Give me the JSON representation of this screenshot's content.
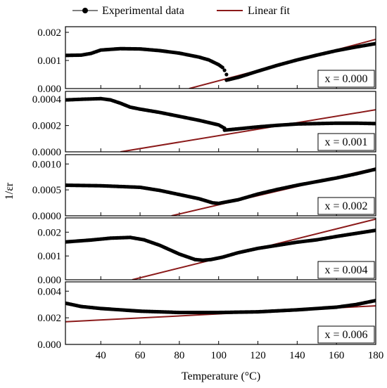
{
  "chart_data": {
    "type": "scatter",
    "layout": "stacked-panels",
    "xlabel": "Temperature (°C)",
    "ylabel": "1/εr",
    "x_ticks": [
      "40",
      "60",
      "80",
      "100",
      "120",
      "140",
      "160",
      "180"
    ],
    "xlim": [
      22,
      180
    ],
    "legend": {
      "placement": "top",
      "experimental_label": "Experimental data",
      "fit_label": "Linear fit"
    },
    "colors": {
      "data": "#000000",
      "fit": "#8b1a1a"
    },
    "panels": [
      {
        "label": "x = 0.000",
        "ylim": [
          0,
          0.0022
        ],
        "yticks": [
          "0.000",
          "0.001",
          "0.002"
        ],
        "ytick_values": [
          0,
          0.001,
          0.002
        ],
        "series": [
          [
            22,
            0.00118
          ],
          [
            30,
            0.00119
          ],
          [
            35,
            0.00125
          ],
          [
            40,
            0.00137
          ],
          [
            50,
            0.00142
          ],
          [
            60,
            0.00141
          ],
          [
            70,
            0.00135
          ],
          [
            80,
            0.00126
          ],
          [
            90,
            0.00112
          ],
          [
            95,
            0.00102
          ],
          [
            100,
            0.00085
          ],
          [
            102,
            0.00075
          ],
          [
            103,
            0.00065
          ],
          [
            104,
            0.0005
          ]
        ],
        "series2": [
          [
            104,
            0.0003
          ],
          [
            110,
            0.0004
          ],
          [
            120,
            0.00062
          ],
          [
            130,
            0.00083
          ],
          [
            140,
            0.00102
          ],
          [
            150,
            0.00119
          ],
          [
            160,
            0.00135
          ],
          [
            170,
            0.00148
          ],
          [
            180,
            0.0016
          ]
        ],
        "fit": [
          [
            85,
            0.0
          ],
          [
            180,
            0.00175
          ]
        ]
      },
      {
        "label": "x = 0.001",
        "ylim": [
          0,
          0.00046
        ],
        "yticks": [
          "0.0000",
          "0.0002",
          "0.0004"
        ],
        "ytick_values": [
          0,
          0.0002,
          0.0004
        ],
        "series": [
          [
            22,
            0.000395
          ],
          [
            30,
            0.0004
          ],
          [
            40,
            0.000405
          ],
          [
            45,
            0.000395
          ],
          [
            50,
            0.00037
          ],
          [
            55,
            0.00034
          ],
          [
            60,
            0.000325
          ],
          [
            70,
            0.0003
          ],
          [
            80,
            0.00027
          ],
          [
            90,
            0.00024
          ],
          [
            100,
            0.000205
          ],
          [
            103,
            0.00018
          ]
        ],
        "series2": [
          [
            103,
            0.000165
          ],
          [
            110,
            0.000175
          ],
          [
            120,
            0.00019
          ],
          [
            130,
            0.000202
          ],
          [
            140,
            0.000212
          ],
          [
            150,
            0.000215
          ],
          [
            160,
            0.000218
          ],
          [
            170,
            0.000218
          ],
          [
            180,
            0.000215
          ]
        ],
        "fit": [
          [
            50,
            0.0
          ],
          [
            180,
            0.00032
          ]
        ]
      },
      {
        "label": "x = 0.002",
        "ylim": [
          0,
          0.00118
        ],
        "yticks": [
          "0.0000",
          "0.0005",
          "0.0010"
        ],
        "ytick_values": [
          0,
          0.0005,
          0.001
        ],
        "series": [
          [
            22,
            0.00059
          ],
          [
            40,
            0.00058
          ],
          [
            60,
            0.00055
          ],
          [
            70,
            0.00049
          ],
          [
            80,
            0.00041
          ],
          [
            90,
            0.00033
          ],
          [
            97,
            0.00025
          ],
          [
            100,
            0.00024
          ],
          [
            110,
            0.00031
          ],
          [
            120,
            0.00042
          ],
          [
            130,
            0.00051
          ],
          [
            140,
            0.00059
          ],
          [
            150,
            0.00066
          ],
          [
            160,
            0.00073
          ],
          [
            170,
            0.00081
          ],
          [
            180,
            0.0009
          ]
        ],
        "fit": [
          [
            76,
            0.0
          ],
          [
            180,
            0.00092
          ]
        ]
      },
      {
        "label": "x = 0.004",
        "ylim": [
          0,
          0.0026
        ],
        "yticks": [
          "0.000",
          "0.001",
          "0.002"
        ],
        "ytick_values": [
          0,
          0.001,
          0.002
        ],
        "series": [
          [
            22,
            0.00159
          ],
          [
            35,
            0.00167
          ],
          [
            45,
            0.00175
          ],
          [
            55,
            0.00178
          ],
          [
            62,
            0.00168
          ],
          [
            70,
            0.00145
          ],
          [
            80,
            0.00108
          ],
          [
            88,
            0.00085
          ],
          [
            92,
            0.00082
          ],
          [
            96,
            0.00085
          ],
          [
            102,
            0.00095
          ],
          [
            110,
            0.00114
          ],
          [
            120,
            0.00132
          ],
          [
            130,
            0.00145
          ],
          [
            140,
            0.00158
          ],
          [
            150,
            0.00168
          ],
          [
            160,
            0.00182
          ],
          [
            170,
            0.00195
          ],
          [
            180,
            0.00208
          ]
        ],
        "fit": [
          [
            56,
            0.0
          ],
          [
            180,
            0.00255
          ]
        ]
      },
      {
        "label": "x = 0.006",
        "ylim": [
          0,
          0.0047
        ],
        "yticks": [
          "0.000",
          "0.002",
          "0.004"
        ],
        "ytick_values": [
          0,
          0.002,
          0.004
        ],
        "series": [
          [
            22,
            0.0031
          ],
          [
            30,
            0.00285
          ],
          [
            40,
            0.0027
          ],
          [
            60,
            0.0025
          ],
          [
            80,
            0.0024
          ],
          [
            100,
            0.0024
          ],
          [
            120,
            0.00245
          ],
          [
            140,
            0.0026
          ],
          [
            160,
            0.0028
          ],
          [
            170,
            0.003
          ],
          [
            180,
            0.0033
          ]
        ],
        "fit": [
          [
            22,
            0.0017
          ],
          [
            180,
            0.0029
          ]
        ]
      }
    ]
  }
}
